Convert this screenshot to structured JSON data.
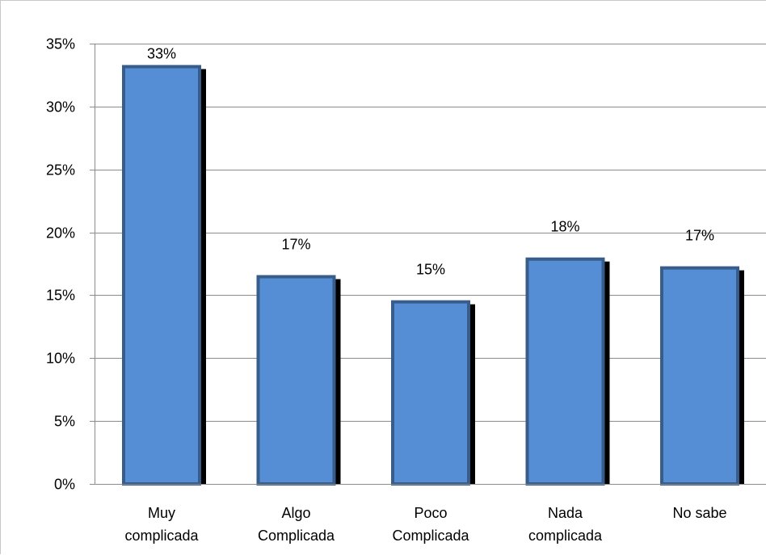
{
  "chart_data": {
    "type": "bar",
    "title": "",
    "xlabel": "",
    "ylabel": "",
    "categories": [
      [
        "Muy",
        "complicada"
      ],
      [
        "Algo",
        "Complicada"
      ],
      [
        "Poco",
        "Complicada"
      ],
      [
        "Nada",
        "complicada"
      ],
      [
        "No sabe"
      ]
    ],
    "values": [
      33.3,
      16.6,
      14.6,
      18.0,
      17.3
    ],
    "data_labels": [
      "33%",
      "17%",
      "15%",
      "18%",
      "17%"
    ],
    "y_ticks": [
      0,
      5,
      10,
      15,
      20,
      25,
      30,
      35
    ],
    "y_tick_labels": [
      "0%",
      "5%",
      "10%",
      "15%",
      "20%",
      "25%",
      "30%",
      "35%"
    ],
    "ylim": [
      0,
      35
    ],
    "grid": true,
    "legend": "none",
    "colors": {
      "bar_fill": "#558ed5",
      "bar_edge": "#385d8a",
      "bar_shadow": "#000000",
      "gridline": "#8c8c8c",
      "axis": "#8c8c8c"
    }
  }
}
